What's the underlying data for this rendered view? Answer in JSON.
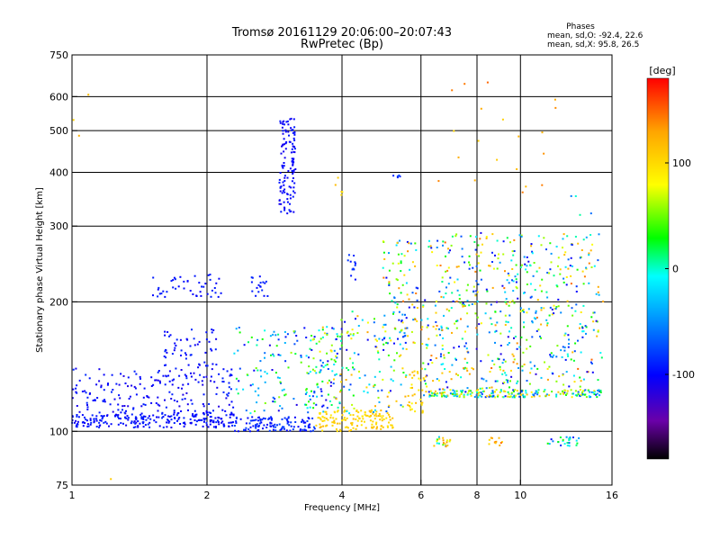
{
  "chart_data": {
    "type": "scatter",
    "title": "Tromsø 20161129 20:06:00–20:07:43",
    "subtitle": "RwPretec (Bp)",
    "xlabel": "Frequency [MHz]",
    "ylabel": "Stationary phase Virtual Height [km]",
    "x_scale": "log",
    "y_scale": "log",
    "xlim": [
      1,
      16
    ],
    "ylim": [
      75,
      750
    ],
    "x_ticks": [
      1,
      2,
      4,
      6,
      8,
      10,
      16
    ],
    "x_tick_labels": [
      "1",
      "2",
      "4",
      "6",
      "8",
      "10",
      "16"
    ],
    "y_ticks": [
      75,
      100,
      200,
      300,
      400,
      500,
      600,
      750
    ],
    "y_tick_labels": [
      "75",
      "100",
      "200",
      "300",
      "400",
      "500",
      "600",
      "750"
    ],
    "x_gridlines": [
      2,
      4,
      6,
      8,
      10
    ],
    "y_gridlines": [
      100,
      200,
      300,
      400,
      500,
      600
    ],
    "colorbar": {
      "label": "[deg]",
      "range": [
        -180,
        180
      ],
      "ticks": [
        100,
        0,
        -100
      ],
      "tick_labels": [
        "100",
        "0",
        "-100"
      ],
      "colors": [
        "#000000",
        "#6a00a8",
        "#0000ff",
        "#00a0ff",
        "#00ffff",
        "#00ff00",
        "#ffff00",
        "#ffa500",
        "#ff0000"
      ]
    },
    "stats": {
      "heading": "Phases",
      "line1": "mean, sd,O: -92.4, 22.6",
      "line2": "mean, sd,X:  95.8, 26.5"
    },
    "clusters": [
      {
        "fx": [
          1.0,
          2.3
        ],
        "hy": [
          102,
          110
        ],
        "phase": [
          -110,
          -85
        ],
        "n": 220
      },
      {
        "fx": [
          1.0,
          2.3
        ],
        "hy": [
          110,
          140
        ],
        "phase": [
          -115,
          -85
        ],
        "n": 200
      },
      {
        "fx": [
          1.6,
          2.1
        ],
        "hy": [
          140,
          175
        ],
        "phase": [
          -110,
          -85
        ],
        "n": 55
      },
      {
        "fx": [
          1.5,
          2.15
        ],
        "hy": [
          205,
          232
        ],
        "phase": [
          -105,
          -88
        ],
        "n": 45
      },
      {
        "fx": [
          2.5,
          2.75
        ],
        "hy": [
          205,
          230
        ],
        "phase": [
          -100,
          -85
        ],
        "n": 18
      },
      {
        "fx": [
          2.3,
          3.5
        ],
        "hy": [
          100,
          108
        ],
        "phase": [
          -105,
          -75
        ],
        "n": 120
      },
      {
        "fx": [
          2.3,
          3.8
        ],
        "hy": [
          110,
          175
        ],
        "phase": [
          -115,
          60
        ],
        "n": 140
      },
      {
        "fx": [
          2.9,
          3.15
        ],
        "hy": [
          320,
          540
        ],
        "phase": [
          -110,
          -90
        ],
        "n": 120
      },
      {
        "fx": [
          3.4,
          4.0
        ],
        "hy": [
          110,
          175
        ],
        "phase": [
          -110,
          120
        ],
        "n": 60
      },
      {
        "fx": [
          3.5,
          5.2
        ],
        "hy": [
          100,
          112
        ],
        "phase": [
          90,
          120
        ],
        "n": 140
      },
      {
        "fx": [
          3.8,
          5.6
        ],
        "hy": [
          110,
          190
        ],
        "phase": [
          -110,
          130
        ],
        "n": 130
      },
      {
        "fx": [
          4.1,
          4.3
        ],
        "hy": [
          225,
          260
        ],
        "phase": [
          -100,
          -80
        ],
        "n": 12
      },
      {
        "fx": [
          4.9,
          5.9
        ],
        "hy": [
          160,
          280
        ],
        "phase": [
          -110,
          150
        ],
        "n": 90
      },
      {
        "fx": [
          5.6,
          6.1
        ],
        "hy": [
          110,
          140
        ],
        "phase": [
          80,
          120
        ],
        "n": 35
      },
      {
        "fx": [
          6.0,
          15.5
        ],
        "hy": [
          120,
          125
        ],
        "phase": [
          -100,
          130
        ],
        "n": 230
      },
      {
        "fx": [
          6.0,
          15.5
        ],
        "hy": [
          125,
          205
        ],
        "phase": [
          -120,
          150
        ],
        "n": 360
      },
      {
        "fx": [
          6.2,
          15.0
        ],
        "hy": [
          205,
          290
        ],
        "phase": [
          -110,
          150
        ],
        "n": 220
      },
      {
        "fx": [
          6.4,
          7.0
        ],
        "hy": [
          92,
          97
        ],
        "phase": [
          -100,
          150
        ],
        "n": 20
      },
      {
        "fx": [
          8.4,
          9.2
        ],
        "hy": [
          92,
          97
        ],
        "phase": [
          100,
          150
        ],
        "n": 12
      },
      {
        "fx": [
          11.5,
          13.5
        ],
        "hy": [
          92,
          97
        ],
        "phase": [
          -100,
          40
        ],
        "n": 25
      },
      {
        "fx": [
          6.5,
          12.0
        ],
        "hy": [
          330,
          650
        ],
        "phase": [
          100,
          150
        ],
        "n": 20
      },
      {
        "fx": [
          1.0,
          1.1
        ],
        "hy": [
          370,
          630
        ],
        "phase": [
          100,
          130
        ],
        "n": 3
      },
      {
        "fx": [
          3.8,
          4.1
        ],
        "hy": [
          340,
          390
        ],
        "phase": [
          90,
          130
        ],
        "n": 5
      },
      {
        "fx": [
          5.2,
          5.4
        ],
        "hy": [
          385,
          395
        ],
        "phase": [
          -90,
          -70
        ],
        "n": 5
      },
      {
        "fx": [
          12.0,
          14.5
        ],
        "hy": [
          295,
          370
        ],
        "phase": [
          -100,
          40
        ],
        "n": 4
      },
      {
        "fx": [
          1.2,
          1.3
        ],
        "hy": [
          76,
          78
        ],
        "phase": [
          100,
          130
        ],
        "n": 1
      }
    ]
  }
}
